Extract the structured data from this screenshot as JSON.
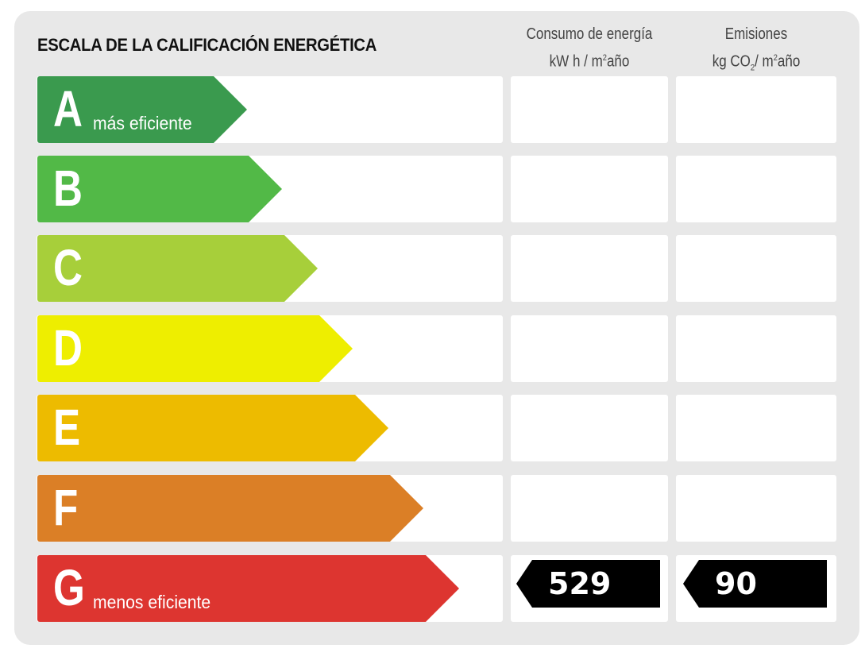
{
  "title": "ESCALA DE LA CALIFICACIÓN ENERGÉTICA",
  "columns": {
    "consumo": {
      "line1": "Consumo de energía",
      "line2_pre": "kW h / m",
      "sup": "2",
      "line2_post": "año"
    },
    "emisiones": {
      "line1": "Emisiones",
      "line2_pre": "kg CO",
      "sub": "2",
      "line2_mid": "/ m",
      "sup": "2",
      "line2_post": "año"
    }
  },
  "ratings": [
    {
      "letter": "A",
      "label": "más eficiente",
      "color": "#3a9a4e"
    },
    {
      "letter": "B",
      "label": "",
      "color": "#52b947"
    },
    {
      "letter": "C",
      "label": "",
      "color": "#a7cf3a"
    },
    {
      "letter": "D",
      "label": "",
      "color": "#eeee00"
    },
    {
      "letter": "E",
      "label": "",
      "color": "#edbb00"
    },
    {
      "letter": "F",
      "label": "",
      "color": "#db7f26"
    },
    {
      "letter": "G",
      "label": "menos eficiente",
      "color": "#dd3530"
    }
  ],
  "result": {
    "rating": "G",
    "consumo": "529",
    "emisiones": "90"
  }
}
